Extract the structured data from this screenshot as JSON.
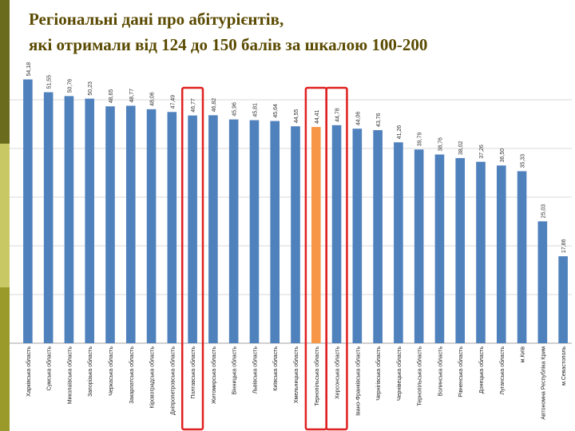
{
  "slide": {
    "title_line1": "Регіональні дані про абітурієнтів,",
    "title_line2": "які отримали від 124 до 150 балів за шкалою 100-200"
  },
  "colors": {
    "bar": "#4f81bd",
    "bar_highlight": "#f79646",
    "box": "#e02020",
    "grid": "#d9d9d9",
    "title": "#5a4a00"
  },
  "chart_data": {
    "type": "bar",
    "title": "",
    "xlabel": "",
    "ylabel": "",
    "ylim": [
      0,
      60
    ],
    "grid": true,
    "categories": [
      "Харківська область",
      "Сумська область",
      "Миколаївська область",
      "Запорізька область",
      "Черкаська область",
      "Закарпатська область",
      "Кіровоградська область",
      "Дніпропетровська область",
      "Полтавська область",
      "Житомирська область",
      "Вінницька область",
      "Львівська область",
      "Київська область",
      "Хмельницька область",
      "Тернопільська область",
      "Херсонська область",
      "Івано-Франківська область",
      "Чернігівська область",
      "Чернівецька область",
      "Тернопільська область",
      "Волинська область",
      "Рівненська область",
      "Донецька область",
      "Луганська область",
      "м.Київ",
      "Автономна Республіка Крим",
      "м.Севастополь"
    ],
    "values": [
      54.18,
      51.55,
      50.76,
      50.23,
      48.65,
      48.77,
      48.06,
      47.49,
      46.77,
      46.82,
      45.96,
      45.81,
      45.64,
      44.55,
      44.41,
      44.78,
      44.06,
      43.76,
      41.26,
      39.79,
      38.76,
      38.02,
      37.26,
      36.5,
      35.33,
      25.03,
      17.86
    ],
    "value_labels": [
      "54,18",
      "51,55",
      "50,76",
      "50,23",
      "48,65",
      "48,77",
      "48,06",
      "47,49",
      "46,77",
      "46,82",
      "45,96",
      "45,81",
      "45,64",
      "44,55",
      "44,41",
      "44,78",
      "44,06",
      "43,76",
      "41,26",
      "39,79",
      "38,76",
      "38,02",
      "37,26",
      "36,50",
      "35,33",
      "25,03",
      "17,86"
    ],
    "highlighted_index": 14,
    "boxed_indices": [
      8,
      14,
      15
    ]
  }
}
